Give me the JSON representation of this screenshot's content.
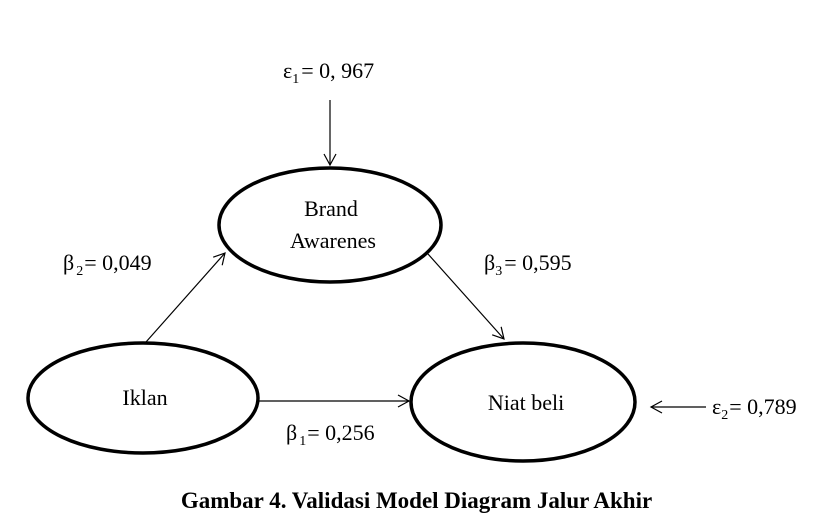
{
  "nodes": {
    "brand": {
      "line1": "Brand",
      "line2": "Awarenes"
    },
    "iklan": {
      "label": "Iklan"
    },
    "niat": {
      "label": "Niat beli"
    }
  },
  "coefficients": {
    "epsilon1": {
      "symbol": "ε",
      "sub": "1",
      "value": "= 0, 967"
    },
    "beta2": {
      "symbol": "β",
      "sub": "2",
      "value": "= 0,049"
    },
    "beta3": {
      "symbol": "β",
      "sub": "3",
      "value": "= 0,595"
    },
    "beta1": {
      "symbol": "β",
      "sub": "1",
      "value": "= 0,256"
    },
    "epsilon2": {
      "symbol": "ε",
      "sub": "2",
      "value": "= 0,789"
    }
  },
  "caption": "Gambar 4. Validasi Model Diagram Jalur Akhir"
}
